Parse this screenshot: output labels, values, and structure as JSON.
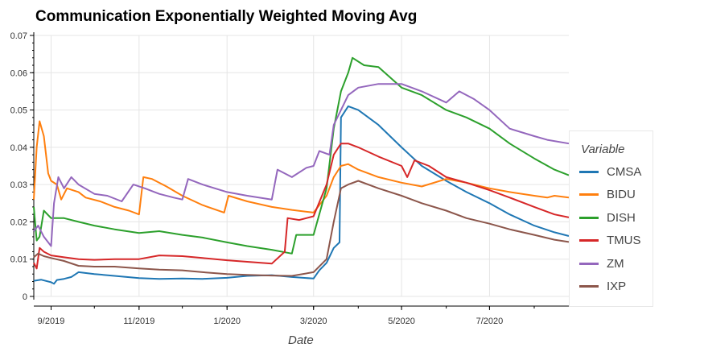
{
  "chart_data": {
    "type": "line",
    "title": "Communication Exponentially Weighted Moving Avg",
    "xlabel": "Date",
    "ylabel": "",
    "ylim": [
      0,
      0.07
    ],
    "xlim": [
      "2019-08-20",
      "2020-08-25"
    ],
    "y_ticks": [
      0,
      0.01,
      0.02,
      0.03,
      0.04,
      0.05,
      0.06,
      0.07
    ],
    "y_tick_labels": [
      "0",
      "0.01",
      "0.02",
      "0.03",
      "0.04",
      "0.05",
      "0.06",
      "0.07"
    ],
    "x_ticks": [
      "2019-09-01",
      "2019-11-01",
      "2020-01-01",
      "2020-03-01",
      "2020-05-01",
      "2020-07-01"
    ],
    "x_tick_labels": [
      "9/2019",
      "11/2019",
      "1/2020",
      "3/2020",
      "5/2020",
      "7/2020"
    ],
    "grid": true,
    "legend": {
      "title": "Variable",
      "position": "right"
    },
    "series": [
      {
        "name": "CMSA",
        "color": "#1f77b4",
        "points": [
          [
            "2019-08-20",
            0.0042
          ],
          [
            "2019-08-25",
            0.0045
          ],
          [
            "2019-09-01",
            0.0038
          ],
          [
            "2019-09-03",
            0.0034
          ],
          [
            "2019-09-05",
            0.0044
          ],
          [
            "2019-09-10",
            0.0047
          ],
          [
            "2019-09-15",
            0.0052
          ],
          [
            "2019-09-20",
            0.0065
          ],
          [
            "2019-10-01",
            0.006
          ],
          [
            "2019-10-15",
            0.0055
          ],
          [
            "2019-11-01",
            0.0049
          ],
          [
            "2019-11-15",
            0.0047
          ],
          [
            "2019-12-01",
            0.0048
          ],
          [
            "2019-12-15",
            0.0047
          ],
          [
            "2020-01-01",
            0.005
          ],
          [
            "2020-01-15",
            0.0055
          ],
          [
            "2020-02-01",
            0.0057
          ],
          [
            "2020-02-15",
            0.0052
          ],
          [
            "2020-03-01",
            0.0048
          ],
          [
            "2020-03-05",
            0.007
          ],
          [
            "2020-03-10",
            0.009
          ],
          [
            "2020-03-15",
            0.013
          ],
          [
            "2020-03-19",
            0.0145
          ],
          [
            "2020-03-20",
            0.048
          ],
          [
            "2020-03-25",
            0.051
          ],
          [
            "2020-04-01",
            0.05
          ],
          [
            "2020-04-15",
            0.046
          ],
          [
            "2020-05-01",
            0.04
          ],
          [
            "2020-05-15",
            0.035
          ],
          [
            "2020-06-01",
            0.031
          ],
          [
            "2020-06-15",
            0.028
          ],
          [
            "2020-07-01",
            0.025
          ],
          [
            "2020-07-15",
            0.022
          ],
          [
            "2020-08-01",
            0.019
          ],
          [
            "2020-08-15",
            0.0172
          ],
          [
            "2020-08-25",
            0.0162
          ]
        ]
      },
      {
        "name": "BIDU",
        "color": "#ff7f0e",
        "points": [
          [
            "2019-08-20",
            0.026
          ],
          [
            "2019-08-22",
            0.04
          ],
          [
            "2019-08-24",
            0.047
          ],
          [
            "2019-08-27",
            0.043
          ],
          [
            "2019-08-30",
            0.033
          ],
          [
            "2019-09-01",
            0.031
          ],
          [
            "2019-09-05",
            0.03
          ],
          [
            "2019-09-08",
            0.026
          ],
          [
            "2019-09-12",
            0.029
          ],
          [
            "2019-09-20",
            0.028
          ],
          [
            "2019-09-25",
            0.0265
          ],
          [
            "2019-10-05",
            0.0255
          ],
          [
            "2019-10-15",
            0.024
          ],
          [
            "2019-10-25",
            0.023
          ],
          [
            "2019-11-01",
            0.022
          ],
          [
            "2019-11-04",
            0.032
          ],
          [
            "2019-11-10",
            0.0315
          ],
          [
            "2019-11-20",
            0.0295
          ],
          [
            "2019-12-01",
            0.027
          ],
          [
            "2019-12-15",
            0.0245
          ],
          [
            "2019-12-30",
            0.0225
          ],
          [
            "2020-01-02",
            0.027
          ],
          [
            "2020-01-15",
            0.0255
          ],
          [
            "2020-02-01",
            0.024
          ],
          [
            "2020-02-15",
            0.0232
          ],
          [
            "2020-03-01",
            0.0225
          ],
          [
            "2020-03-10",
            0.027
          ],
          [
            "2020-03-15",
            0.032
          ],
          [
            "2020-03-20",
            0.035
          ],
          [
            "2020-03-25",
            0.0355
          ],
          [
            "2020-04-01",
            0.034
          ],
          [
            "2020-04-15",
            0.032
          ],
          [
            "2020-05-01",
            0.0305
          ],
          [
            "2020-05-15",
            0.0295
          ],
          [
            "2020-06-01",
            0.0315
          ],
          [
            "2020-06-15",
            0.0305
          ],
          [
            "2020-07-01",
            0.029
          ],
          [
            "2020-07-15",
            0.028
          ],
          [
            "2020-08-01",
            0.027
          ],
          [
            "2020-08-10",
            0.0265
          ],
          [
            "2020-08-15",
            0.027
          ],
          [
            "2020-08-25",
            0.0265
          ]
        ]
      },
      {
        "name": "DISH",
        "color": "#2ca02c",
        "points": [
          [
            "2019-08-20",
            0.024
          ],
          [
            "2019-08-22",
            0.015
          ],
          [
            "2019-08-24",
            0.016
          ],
          [
            "2019-08-27",
            0.023
          ],
          [
            "2019-09-01",
            0.021
          ],
          [
            "2019-09-10",
            0.021
          ],
          [
            "2019-09-20",
            0.02
          ],
          [
            "2019-10-01",
            0.019
          ],
          [
            "2019-10-15",
            0.018
          ],
          [
            "2019-11-01",
            0.017
          ],
          [
            "2019-11-15",
            0.0175
          ],
          [
            "2019-12-01",
            0.0165
          ],
          [
            "2019-12-15",
            0.0158
          ],
          [
            "2020-01-01",
            0.0145
          ],
          [
            "2020-01-15",
            0.0135
          ],
          [
            "2020-02-01",
            0.0125
          ],
          [
            "2020-02-15",
            0.0115
          ],
          [
            "2020-02-18",
            0.0165
          ],
          [
            "2020-03-01",
            0.0165
          ],
          [
            "2020-03-10",
            0.029
          ],
          [
            "2020-03-15",
            0.045
          ],
          [
            "2020-03-20",
            0.055
          ],
          [
            "2020-03-25",
            0.06
          ],
          [
            "2020-03-28",
            0.064
          ],
          [
            "2020-04-05",
            0.062
          ],
          [
            "2020-04-15",
            0.0615
          ],
          [
            "2020-05-01",
            0.056
          ],
          [
            "2020-05-15",
            0.054
          ],
          [
            "2020-06-01",
            0.05
          ],
          [
            "2020-06-15",
            0.048
          ],
          [
            "2020-07-01",
            0.045
          ],
          [
            "2020-07-15",
            0.041
          ],
          [
            "2020-08-01",
            0.037
          ],
          [
            "2020-08-15",
            0.034
          ],
          [
            "2020-08-25",
            0.0325
          ]
        ]
      },
      {
        "name": "TMUS",
        "color": "#d62728",
        "points": [
          [
            "2019-08-20",
            0.009
          ],
          [
            "2019-08-22",
            0.0075
          ],
          [
            "2019-08-24",
            0.013
          ],
          [
            "2019-08-27",
            0.012
          ],
          [
            "2019-09-01",
            0.011
          ],
          [
            "2019-09-10",
            0.0105
          ],
          [
            "2019-09-20",
            0.01
          ],
          [
            "2019-10-01",
            0.0098
          ],
          [
            "2019-10-15",
            0.01
          ],
          [
            "2019-11-01",
            0.01
          ],
          [
            "2019-11-15",
            0.011
          ],
          [
            "2019-12-01",
            0.0108
          ],
          [
            "2019-12-15",
            0.0103
          ],
          [
            "2020-01-01",
            0.0097
          ],
          [
            "2020-01-15",
            0.0093
          ],
          [
            "2020-02-01",
            0.0088
          ],
          [
            "2020-02-10",
            0.012
          ],
          [
            "2020-02-12",
            0.021
          ],
          [
            "2020-02-20",
            0.0205
          ],
          [
            "2020-03-01",
            0.0215
          ],
          [
            "2020-03-10",
            0.03
          ],
          [
            "2020-03-15",
            0.038
          ],
          [
            "2020-03-20",
            0.041
          ],
          [
            "2020-03-25",
            0.041
          ],
          [
            "2020-04-01",
            0.04
          ],
          [
            "2020-04-15",
            0.0375
          ],
          [
            "2020-05-01",
            0.035
          ],
          [
            "2020-05-05",
            0.032
          ],
          [
            "2020-05-10",
            0.0365
          ],
          [
            "2020-05-20",
            0.035
          ],
          [
            "2020-06-01",
            0.032
          ],
          [
            "2020-06-15",
            0.0305
          ],
          [
            "2020-07-01",
            0.0285
          ],
          [
            "2020-07-15",
            0.0265
          ],
          [
            "2020-08-01",
            0.024
          ],
          [
            "2020-08-15",
            0.022
          ],
          [
            "2020-08-25",
            0.0212
          ]
        ]
      },
      {
        "name": "ZM",
        "color": "#9467bd",
        "points": [
          [
            "2019-08-20",
            0.0175
          ],
          [
            "2019-08-23",
            0.019
          ],
          [
            "2019-08-27",
            0.016
          ],
          [
            "2019-09-01",
            0.0135
          ],
          [
            "2019-09-03",
            0.025
          ],
          [
            "2019-09-06",
            0.032
          ],
          [
            "2019-09-10",
            0.029
          ],
          [
            "2019-09-15",
            0.032
          ],
          [
            "2019-09-20",
            0.03
          ],
          [
            "2019-10-01",
            0.0275
          ],
          [
            "2019-10-10",
            0.027
          ],
          [
            "2019-10-20",
            0.0255
          ],
          [
            "2019-10-28",
            0.03
          ],
          [
            "2019-11-05",
            0.029
          ],
          [
            "2019-11-15",
            0.0275
          ],
          [
            "2019-11-25",
            0.0265
          ],
          [
            "2019-12-01",
            0.026
          ],
          [
            "2019-12-05",
            0.0315
          ],
          [
            "2019-12-15",
            0.03
          ],
          [
            "2020-01-01",
            0.028
          ],
          [
            "2020-01-15",
            0.027
          ],
          [
            "2020-02-01",
            0.026
          ],
          [
            "2020-02-05",
            0.034
          ],
          [
            "2020-02-15",
            0.032
          ],
          [
            "2020-02-25",
            0.0345
          ],
          [
            "2020-03-01",
            0.035
          ],
          [
            "2020-03-05",
            0.039
          ],
          [
            "2020-03-12",
            0.038
          ],
          [
            "2020-03-15",
            0.046
          ],
          [
            "2020-03-20",
            0.05
          ],
          [
            "2020-03-25",
            0.054
          ],
          [
            "2020-04-01",
            0.056
          ],
          [
            "2020-04-15",
            0.057
          ],
          [
            "2020-05-01",
            0.057
          ],
          [
            "2020-05-15",
            0.055
          ],
          [
            "2020-06-01",
            0.052
          ],
          [
            "2020-06-10",
            0.055
          ],
          [
            "2020-06-20",
            0.053
          ],
          [
            "2020-07-01",
            0.05
          ],
          [
            "2020-07-15",
            0.045
          ],
          [
            "2020-08-01",
            0.043
          ],
          [
            "2020-08-10",
            0.042
          ],
          [
            "2020-08-25",
            0.041
          ]
        ]
      },
      {
        "name": "IXP",
        "color": "#8c564b",
        "points": [
          [
            "2019-08-20",
            0.0105
          ],
          [
            "2019-08-23",
            0.0115
          ],
          [
            "2019-08-27",
            0.0108
          ],
          [
            "2019-09-01",
            0.0103
          ],
          [
            "2019-09-10",
            0.0095
          ],
          [
            "2019-09-20",
            0.0082
          ],
          [
            "2019-10-01",
            0.008
          ],
          [
            "2019-10-15",
            0.008
          ],
          [
            "2019-11-01",
            0.0075
          ],
          [
            "2019-11-15",
            0.0072
          ],
          [
            "2019-12-01",
            0.007
          ],
          [
            "2019-12-15",
            0.0065
          ],
          [
            "2020-01-01",
            0.006
          ],
          [
            "2020-01-15",
            0.0058
          ],
          [
            "2020-02-01",
            0.0056
          ],
          [
            "2020-02-15",
            0.0055
          ],
          [
            "2020-03-01",
            0.0065
          ],
          [
            "2020-03-10",
            0.01
          ],
          [
            "2020-03-15",
            0.02
          ],
          [
            "2020-03-20",
            0.029
          ],
          [
            "2020-03-25",
            0.03
          ],
          [
            "2020-04-01",
            0.031
          ],
          [
            "2020-04-15",
            0.029
          ],
          [
            "2020-05-01",
            0.027
          ],
          [
            "2020-05-15",
            0.025
          ],
          [
            "2020-06-01",
            0.023
          ],
          [
            "2020-06-15",
            0.021
          ],
          [
            "2020-07-01",
            0.0195
          ],
          [
            "2020-07-15",
            0.018
          ],
          [
            "2020-08-01",
            0.0165
          ],
          [
            "2020-08-15",
            0.0152
          ],
          [
            "2020-08-25",
            0.0146
          ]
        ]
      }
    ]
  }
}
